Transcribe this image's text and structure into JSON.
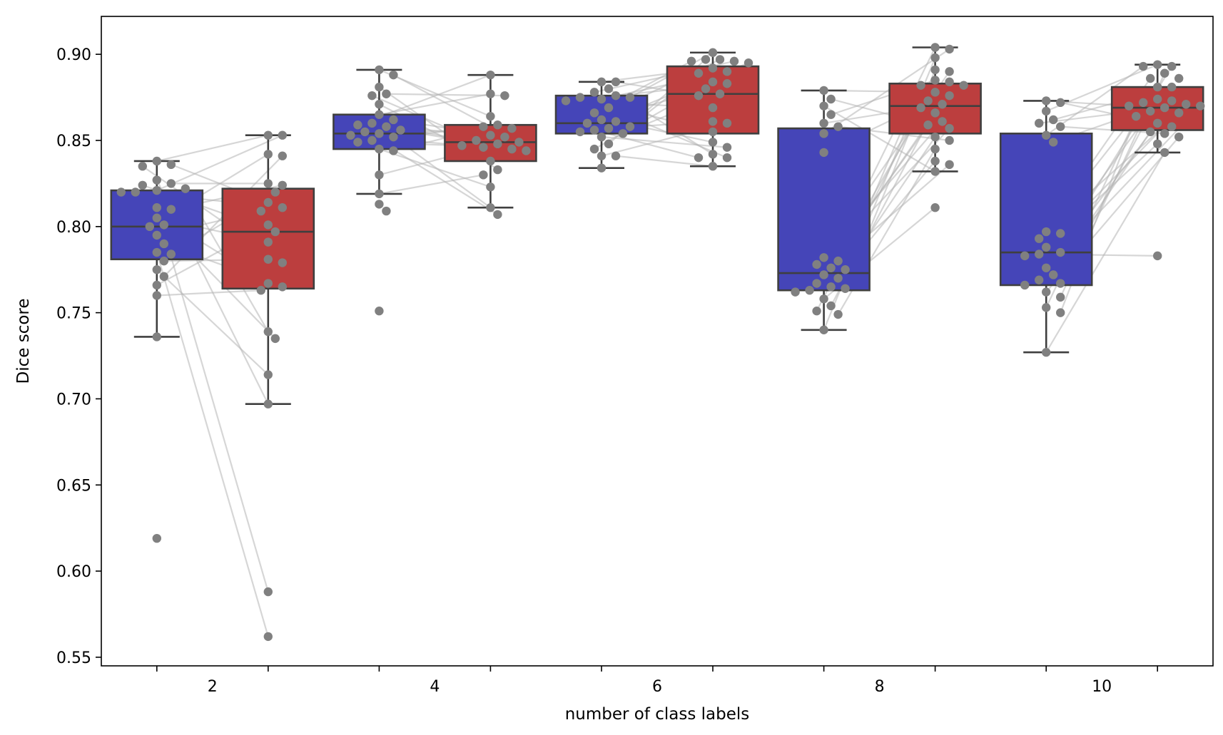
{
  "chart_data": {
    "type": "box",
    "xlabel": "number of class labels",
    "ylabel": "Dice score",
    "ylim": [
      0.545,
      0.922
    ],
    "yticks": [
      0.55,
      0.6,
      0.65,
      0.7,
      0.75,
      0.8,
      0.85,
      0.9
    ],
    "ytick_labels": [
      "0.55",
      "0.60",
      "0.65",
      "0.70",
      "0.75",
      "0.80",
      "0.85",
      "0.90"
    ],
    "groups": [
      "2",
      "4",
      "6",
      "8",
      "10"
    ],
    "series_colors": [
      "#4545b8",
      "#bc3e3e"
    ],
    "point_color": "#808080",
    "line_color": "#b4b4b4",
    "box_edge_color": "#3f3f3f",
    "grid": false,
    "boxes": [
      {
        "group": "2",
        "series": 0,
        "q1": 0.781,
        "median": 0.8,
        "q3": 0.821,
        "whisker_low": 0.736,
        "whisker_high": 0.838
      },
      {
        "group": "2",
        "series": 1,
        "q1": 0.764,
        "median": 0.797,
        "q3": 0.822,
        "whisker_low": 0.697,
        "whisker_high": 0.853
      },
      {
        "group": "4",
        "series": 0,
        "q1": 0.845,
        "median": 0.854,
        "q3": 0.865,
        "whisker_low": 0.819,
        "whisker_high": 0.891
      },
      {
        "group": "4",
        "series": 1,
        "q1": 0.838,
        "median": 0.849,
        "q3": 0.859,
        "whisker_low": 0.811,
        "whisker_high": 0.888
      },
      {
        "group": "6",
        "series": 0,
        "q1": 0.854,
        "median": 0.86,
        "q3": 0.876,
        "whisker_low": 0.834,
        "whisker_high": 0.884
      },
      {
        "group": "6",
        "series": 1,
        "q1": 0.854,
        "median": 0.877,
        "q3": 0.893,
        "whisker_low": 0.835,
        "whisker_high": 0.901
      },
      {
        "group": "8",
        "series": 0,
        "q1": 0.763,
        "median": 0.773,
        "q3": 0.857,
        "whisker_low": 0.74,
        "whisker_high": 0.879
      },
      {
        "group": "8",
        "series": 1,
        "q1": 0.854,
        "median": 0.87,
        "q3": 0.883,
        "whisker_low": 0.832,
        "whisker_high": 0.904
      },
      {
        "group": "10",
        "series": 0,
        "q1": 0.766,
        "median": 0.785,
        "q3": 0.854,
        "whisker_low": 0.727,
        "whisker_high": 0.873
      },
      {
        "group": "10",
        "series": 1,
        "q1": 0.856,
        "median": 0.869,
        "q3": 0.881,
        "whisker_low": 0.843,
        "whisker_high": 0.894
      }
    ],
    "points": {
      "2": {
        "series0": [
          0.838,
          0.836,
          0.835,
          0.827,
          0.825,
          0.824,
          0.822,
          0.821,
          0.82,
          0.82,
          0.811,
          0.81,
          0.805,
          0.801,
          0.8,
          0.795,
          0.79,
          0.785,
          0.784,
          0.78,
          0.775,
          0.771,
          0.766,
          0.76,
          0.736,
          0.619
        ],
        "series1": [
          0.853,
          0.853,
          0.842,
          0.841,
          0.825,
          0.824,
          0.82,
          0.814,
          0.811,
          0.809,
          0.801,
          0.797,
          0.791,
          0.781,
          0.779,
          0.767,
          0.765,
          0.763,
          0.739,
          0.735,
          0.714,
          0.697,
          0.588,
          0.562
        ]
      },
      "4": {
        "series0": [
          0.891,
          0.888,
          0.881,
          0.877,
          0.876,
          0.871,
          0.865,
          0.862,
          0.86,
          0.859,
          0.858,
          0.856,
          0.855,
          0.854,
          0.853,
          0.852,
          0.85,
          0.849,
          0.845,
          0.844,
          0.83,
          0.819,
          0.813,
          0.809,
          0.751
        ],
        "series1": [
          0.888,
          0.877,
          0.876,
          0.864,
          0.859,
          0.858,
          0.857,
          0.853,
          0.852,
          0.85,
          0.849,
          0.848,
          0.847,
          0.846,
          0.845,
          0.844,
          0.838,
          0.833,
          0.83,
          0.823,
          0.811,
          0.807
        ]
      },
      "6": {
        "series0": [
          0.884,
          0.884,
          0.88,
          0.878,
          0.876,
          0.875,
          0.875,
          0.874,
          0.873,
          0.869,
          0.866,
          0.862,
          0.861,
          0.86,
          0.858,
          0.857,
          0.856,
          0.855,
          0.854,
          0.852,
          0.848,
          0.845,
          0.841,
          0.841,
          0.834
        ],
        "series1": [
          0.901,
          0.897,
          0.897,
          0.896,
          0.896,
          0.895,
          0.892,
          0.89,
          0.889,
          0.884,
          0.883,
          0.88,
          0.877,
          0.876,
          0.869,
          0.861,
          0.86,
          0.855,
          0.849,
          0.846,
          0.842,
          0.84,
          0.84,
          0.835
        ]
      },
      "8": {
        "series0": [
          0.879,
          0.874,
          0.87,
          0.865,
          0.86,
          0.858,
          0.854,
          0.843,
          0.782,
          0.78,
          0.778,
          0.776,
          0.775,
          0.772,
          0.77,
          0.767,
          0.765,
          0.764,
          0.763,
          0.762,
          0.758,
          0.754,
          0.751,
          0.749,
          0.74
        ],
        "series1": [
          0.904,
          0.903,
          0.898,
          0.891,
          0.89,
          0.885,
          0.884,
          0.882,
          0.882,
          0.878,
          0.876,
          0.873,
          0.871,
          0.869,
          0.866,
          0.861,
          0.859,
          0.857,
          0.852,
          0.85,
          0.845,
          0.838,
          0.836,
          0.832,
          0.811
        ]
      },
      "10": {
        "series0": [
          0.873,
          0.872,
          0.867,
          0.862,
          0.86,
          0.858,
          0.853,
          0.849,
          0.797,
          0.796,
          0.793,
          0.788,
          0.785,
          0.784,
          0.783,
          0.776,
          0.772,
          0.769,
          0.767,
          0.766,
          0.762,
          0.759,
          0.753,
          0.75,
          0.727
        ],
        "series1": [
          0.894,
          0.893,
          0.893,
          0.889,
          0.886,
          0.886,
          0.881,
          0.881,
          0.874,
          0.873,
          0.872,
          0.871,
          0.87,
          0.87,
          0.869,
          0.867,
          0.866,
          0.864,
          0.86,
          0.858,
          0.855,
          0.854,
          0.852,
          0.848,
          0.843,
          0.783
        ]
      }
    }
  }
}
